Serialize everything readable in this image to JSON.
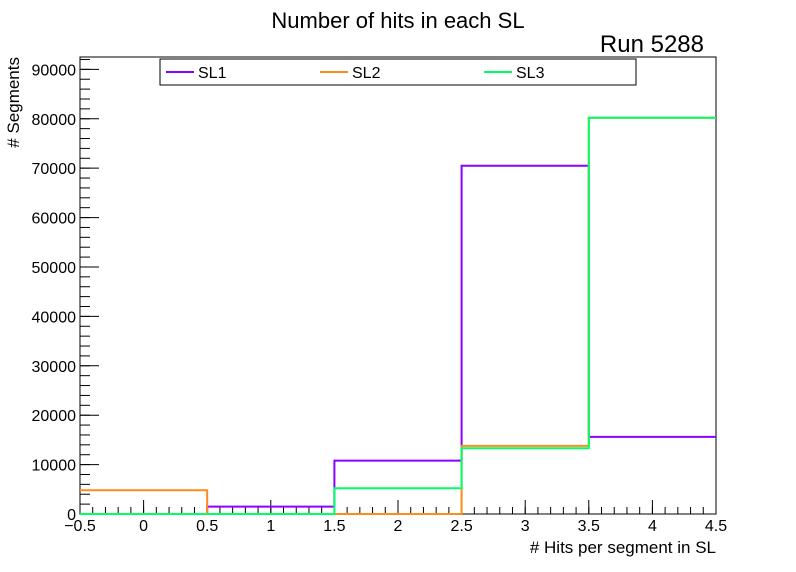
{
  "chart_data": {
    "type": "step-histogram",
    "title": "Number of hits in each SL",
    "annotation": "Run 5288",
    "xlabel": "# Hits per segment in SL",
    "ylabel": "# Segments",
    "xlim": [
      -0.5,
      4.5
    ],
    "ylim": [
      0,
      92500
    ],
    "x_ticks": [
      -0.5,
      0,
      0.5,
      1,
      1.5,
      2,
      2.5,
      3,
      3.5,
      4,
      4.5
    ],
    "x_tick_labels": [
      "−0.5",
      "0",
      "0.5",
      "1",
      "1.5",
      "2",
      "2.5",
      "3",
      "3.5",
      "4",
      "4.5"
    ],
    "y_ticks": [
      0,
      10000,
      20000,
      30000,
      40000,
      50000,
      60000,
      70000,
      80000,
      90000
    ],
    "y_tick_labels": [
      "0",
      "10000",
      "20000",
      "30000",
      "40000",
      "50000",
      "60000",
      "70000",
      "80000",
      "90000"
    ],
    "bin_edges": [
      -0.5,
      0.5,
      1.5,
      2.5,
      3.5,
      4.5
    ],
    "legend_position": "top",
    "series": [
      {
        "name": "SL1",
        "color": "#8b00ff",
        "values": [
          0,
          1500,
          10800,
          70500,
          15600
        ]
      },
      {
        "name": "SL2",
        "color": "#ff8c1a",
        "values": [
          4800,
          0,
          0,
          13800,
          80200
        ]
      },
      {
        "name": "SL3",
        "color": "#00ff66",
        "values": [
          0,
          0,
          5200,
          13300,
          80200
        ]
      }
    ]
  }
}
